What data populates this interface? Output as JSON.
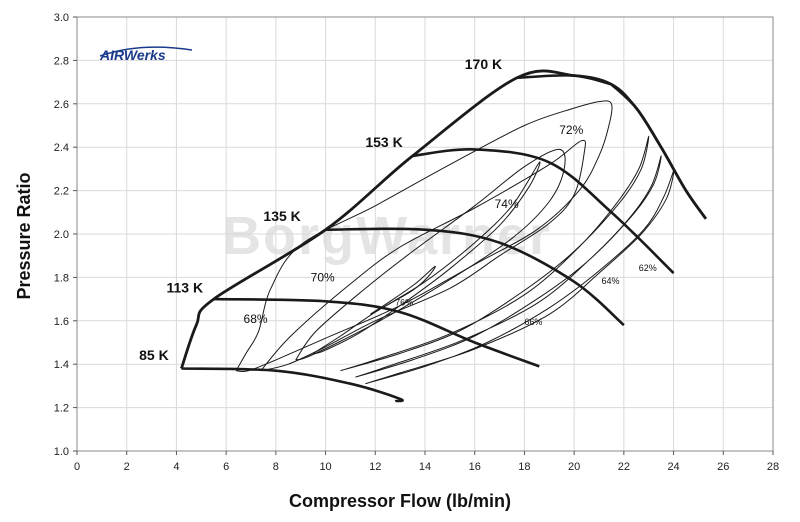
{
  "logo": {
    "text": "AIRWerks"
  },
  "watermark": {
    "text": "BorgWarner"
  },
  "chart_data": {
    "type": "line",
    "title": "",
    "xlabel": "Compressor Flow (lb/min)",
    "ylabel": "Pressure Ratio",
    "xlim": [
      0,
      28
    ],
    "ylim": [
      1.0,
      3.0
    ],
    "x_ticks": [
      0,
      2,
      4,
      6,
      8,
      10,
      12,
      14,
      16,
      18,
      20,
      22,
      24,
      26,
      28
    ],
    "y_ticks": [
      1.0,
      1.2,
      1.4,
      1.6,
      1.8,
      2.0,
      2.2,
      2.4,
      2.6,
      2.8,
      3.0
    ],
    "y_tick_labels": [
      "1.0",
      "1.2",
      "1.4",
      "1.6",
      "1.8",
      "2.0",
      "2.2",
      "2.4",
      "2.6",
      "2.8",
      "3.0"
    ],
    "grid": true,
    "surge_line": {
      "x": [
        4.2,
        4.8,
        5.5,
        10,
        13.5,
        17.7,
        20,
        21.5
      ],
      "y": [
        1.38,
        1.58,
        1.7,
        2.02,
        2.36,
        2.72,
        2.73,
        2.69
      ]
    },
    "choke_line": {
      "x": [
        21.5,
        22.5,
        23.5,
        24.5,
        25.3
      ],
      "y": [
        2.69,
        2.58,
        2.4,
        2.2,
        2.07
      ]
    },
    "speed_lines": [
      {
        "label": "85 K",
        "label_at": [
          2.5,
          1.42
        ],
        "x": [
          4.2,
          8,
          11,
          13,
          12.8
        ],
        "y": [
          1.38,
          1.37,
          1.31,
          1.24,
          1.23
        ]
      },
      {
        "label": "113 K",
        "label_at": [
          3.6,
          1.73
        ],
        "x": [
          5.5,
          10,
          13,
          16,
          18.6
        ],
        "y": [
          1.7,
          1.69,
          1.64,
          1.5,
          1.39
        ]
      },
      {
        "label": "135 K",
        "label_at": [
          7.5,
          2.06
        ],
        "x": [
          10,
          14,
          17,
          20,
          22
        ],
        "y": [
          2.02,
          2.02,
          1.96,
          1.78,
          1.58
        ]
      },
      {
        "label": "153 K",
        "label_at": [
          11.6,
          2.4
        ],
        "x": [
          13.5,
          16,
          19,
          21.5,
          24
        ],
        "y": [
          2.36,
          2.39,
          2.33,
          2.1,
          1.82
        ]
      },
      {
        "label": "170 K",
        "label_at": [
          15.6,
          2.76
        ],
        "x": [
          17.7,
          20,
          21.5,
          22.5,
          23.5,
          24.5,
          25.3
        ],
        "y": [
          2.72,
          2.73,
          2.69,
          2.58,
          2.4,
          2.2,
          2.07
        ]
      }
    ],
    "efficiency_islands": [
      {
        "label": "68%",
        "label_at": [
          6.7,
          1.59
        ],
        "x": [
          6.4,
          6.8,
          7.3,
          7.8,
          9,
          12,
          15,
          18,
          20,
          21,
          21.5,
          21.4,
          21,
          20.2,
          18.5,
          16,
          13,
          10,
          8,
          6.9,
          6.4
        ],
        "y": [
          1.37,
          1.45,
          1.55,
          1.75,
          1.95,
          2.13,
          2.32,
          2.5,
          2.58,
          2.61,
          2.6,
          2.5,
          2.36,
          2.2,
          2.02,
          1.86,
          1.67,
          1.52,
          1.42,
          1.37,
          1.37
        ]
      },
      {
        "label": "70%",
        "label_at": [
          9.4,
          1.78
        ],
        "x": [
          7.4,
          8.6,
          11,
          13,
          16,
          19,
          20.3,
          20.4,
          20,
          19,
          17,
          15,
          12,
          10,
          8.5,
          7.4
        ],
        "y": [
          1.37,
          1.53,
          1.77,
          1.94,
          2.12,
          2.32,
          2.43,
          2.37,
          2.18,
          2.05,
          1.9,
          1.75,
          1.6,
          1.48,
          1.4,
          1.37
        ]
      },
      {
        "label": "72%",
        "label_at": [
          19.4,
          2.46
        ],
        "x": [
          8.8,
          9.6,
          11.5,
          13.5,
          16,
          18,
          19.4,
          19.6,
          19,
          17.5,
          15,
          12.5,
          10.5,
          9.2,
          8.8
        ],
        "y": [
          1.42,
          1.55,
          1.74,
          1.92,
          2.13,
          2.31,
          2.39,
          2.3,
          2.15,
          1.98,
          1.79,
          1.62,
          1.5,
          1.43,
          1.42
        ]
      },
      {
        "label": "74%",
        "label_at": [
          16.8,
          2.12
        ],
        "x": [
          9.5,
          10.6,
          12,
          14,
          16,
          17.5,
          18.6,
          18.2,
          17,
          15,
          13,
          11.3,
          9.9,
          9.5
        ],
        "y": [
          1.45,
          1.53,
          1.64,
          1.78,
          1.96,
          2.13,
          2.33,
          2.22,
          2.04,
          1.84,
          1.67,
          1.54,
          1.46,
          1.45
        ]
      },
      {
        "label": "76%",
        "label_at": [
          12.8,
          1.67
        ],
        "x": [
          11.8,
          12.6,
          13.5,
          14.1,
          14.4,
          13.6,
          12.6,
          11.8
        ],
        "y": [
          1.63,
          1.68,
          1.74,
          1.8,
          1.85,
          1.77,
          1.69,
          1.63
        ]
      },
      {
        "label": "66%",
        "label_at": [
          18.0,
          1.58
        ],
        "x": [
          10.6,
          13,
          15.5,
          18,
          20,
          21.8,
          22.7,
          23,
          22.6,
          21.7,
          20.2,
          18,
          15,
          12,
          10.6
        ],
        "y": [
          1.37,
          1.45,
          1.56,
          1.74,
          1.92,
          2.14,
          2.3,
          2.45,
          2.3,
          2.14,
          1.94,
          1.72,
          1.54,
          1.42,
          1.37
        ]
      },
      {
        "label": "64%",
        "label_at": [
          21.1,
          1.77
        ],
        "x": [
          11.2,
          13.5,
          16,
          18.5,
          20.5,
          22.3,
          23.2,
          23.5,
          23.1,
          22.2,
          20.6,
          18.5,
          15.5,
          12.5,
          11.2
        ],
        "y": [
          1.34,
          1.42,
          1.53,
          1.7,
          1.87,
          2.08,
          2.23,
          2.36,
          2.22,
          2.07,
          1.88,
          1.68,
          1.51,
          1.39,
          1.34
        ]
      },
      {
        "label": "62%",
        "label_at": [
          22.6,
          1.83
        ],
        "x": [
          11.6,
          14,
          16.5,
          19,
          21,
          22.8,
          23.6,
          24,
          23.7,
          22.7,
          21,
          19,
          16,
          13,
          11.6
        ],
        "y": [
          1.31,
          1.39,
          1.5,
          1.66,
          1.83,
          2.02,
          2.17,
          2.29,
          2.16,
          2.0,
          1.82,
          1.63,
          1.47,
          1.36,
          1.31
        ]
      }
    ]
  }
}
